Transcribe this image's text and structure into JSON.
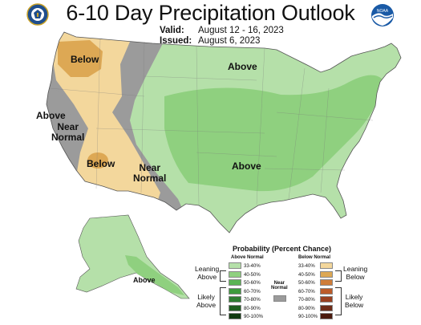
{
  "header": {
    "title": "6-10 Day Precipitation Outlook",
    "valid_label": "Valid:",
    "valid_value": "August 12 - 16, 2023",
    "issued_label": "Issued:",
    "issued_value": "August 6, 2023"
  },
  "logos": {
    "left_icon": "commerce-seal-icon",
    "right_icon": "noaa-logo-icon",
    "right_text": "NOAA"
  },
  "colors": {
    "above_33_40": "#b5e0a9",
    "above_40_50": "#8fd07f",
    "above_50_60": "#5bb454",
    "above_60_70": "#3d9b3d",
    "above_70_80": "#2e7d32",
    "above_80_90": "#1f5e20",
    "above_90_100": "#103a10",
    "below_33_40": "#f3d79c",
    "below_40_50": "#dda854",
    "below_50_60": "#cf7d3a",
    "below_60_70": "#bc5b2a",
    "below_70_80": "#9a4020",
    "below_80_90": "#6e2c18",
    "below_90_100": "#4a1a0e",
    "near_normal": "#9b9b9b"
  },
  "map_labels": {
    "below_northwest": "Below",
    "above_north": "Above",
    "above_west": "Above",
    "near_normal_west": "Near\nNormal",
    "below_southwest": "Below",
    "near_normal_south": "Near\nNormal",
    "above_central": "Above",
    "above_alaska": "Above"
  },
  "legend": {
    "title": "Probability (Percent Chance)",
    "above_head": "Above Normal",
    "below_head": "Below Normal",
    "near_head": "Near\nNormal",
    "ranges": [
      "33-40%",
      "40-50%",
      "50-60%",
      "60-70%",
      "70-80%",
      "80-90%",
      "90-100%"
    ],
    "leaning_above": "Leaning\nAbove",
    "likely_above": "Likely\nAbove",
    "leaning_below": "Leaning\nBelow",
    "likely_below": "Likely\nBelow"
  }
}
